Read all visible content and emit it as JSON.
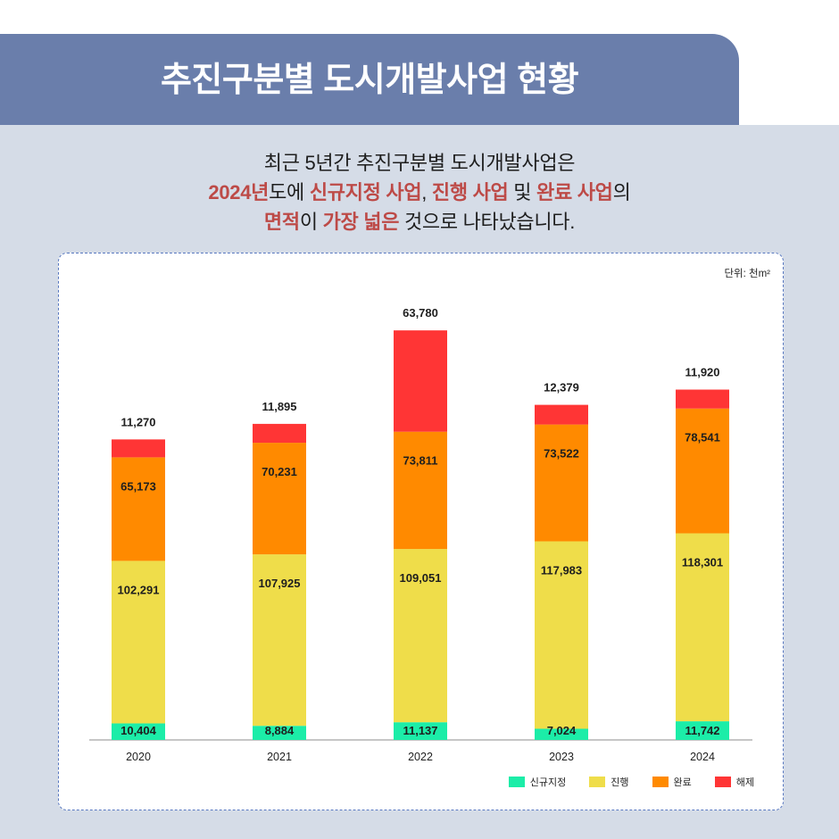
{
  "header": {
    "title": "추진구분별 도시개발사업 현황"
  },
  "summary": {
    "lines": [
      [
        {
          "text": "최근 5년간 추진구분별 도시개발사업은",
          "emphasis": false
        }
      ],
      [
        {
          "text": "2024년",
          "emphasis": true
        },
        {
          "text": "도에 ",
          "emphasis": false
        },
        {
          "text": "신규지정 사업",
          "emphasis": true
        },
        {
          "text": ", ",
          "emphasis": false
        },
        {
          "text": "진행 사업",
          "emphasis": true
        },
        {
          "text": " 및 ",
          "emphasis": false
        },
        {
          "text": "완료 사업",
          "emphasis": true
        },
        {
          "text": "의",
          "emphasis": false
        }
      ],
      [
        {
          "text": "면적",
          "emphasis": true
        },
        {
          "text": "이 ",
          "emphasis": false
        },
        {
          "text": "가장 넓은",
          "emphasis": true
        },
        {
          "text": " 것으로 나타났습니다.",
          "emphasis": false
        }
      ]
    ]
  },
  "colors": {
    "banner": "#6A7EAB",
    "panel": "#D5DCE7",
    "emphasis": "#BD4A47",
    "chart_border": "#5878C0"
  },
  "chart_data": {
    "type": "bar",
    "stacked": true,
    "unit_label": "단위: 천m²",
    "categories": [
      "2020",
      "2021",
      "2022",
      "2023",
      "2024"
    ],
    "series": [
      {
        "name": "신규지정",
        "color": "#1CEDA8",
        "values": [
          10404,
          8884,
          11137,
          7024,
          11742
        ],
        "labels": [
          "10,404",
          "8,884",
          "11,137",
          "7,024",
          "11,742"
        ]
      },
      {
        "name": "진행",
        "color": "#EFDD4A",
        "values": [
          102291,
          107925,
          109051,
          117983,
          118301
        ],
        "labels": [
          "102,291",
          "107,925",
          "109,051",
          "117,983",
          "118,301"
        ]
      },
      {
        "name": "완료",
        "color": "#FF8A00",
        "values": [
          65173,
          70231,
          73811,
          73522,
          78541
        ],
        "labels": [
          "65,173",
          "70,231",
          "73,811",
          "73,522",
          "78,541"
        ]
      },
      {
        "name": "해제",
        "color": "#FF3535",
        "values": [
          11270,
          11895,
          63780,
          12379,
          11920
        ],
        "labels": [
          "11,270",
          "11,895",
          "63,780",
          "12,379",
          "11,920"
        ]
      }
    ],
    "legend": "bottom-right",
    "grid": false
  }
}
